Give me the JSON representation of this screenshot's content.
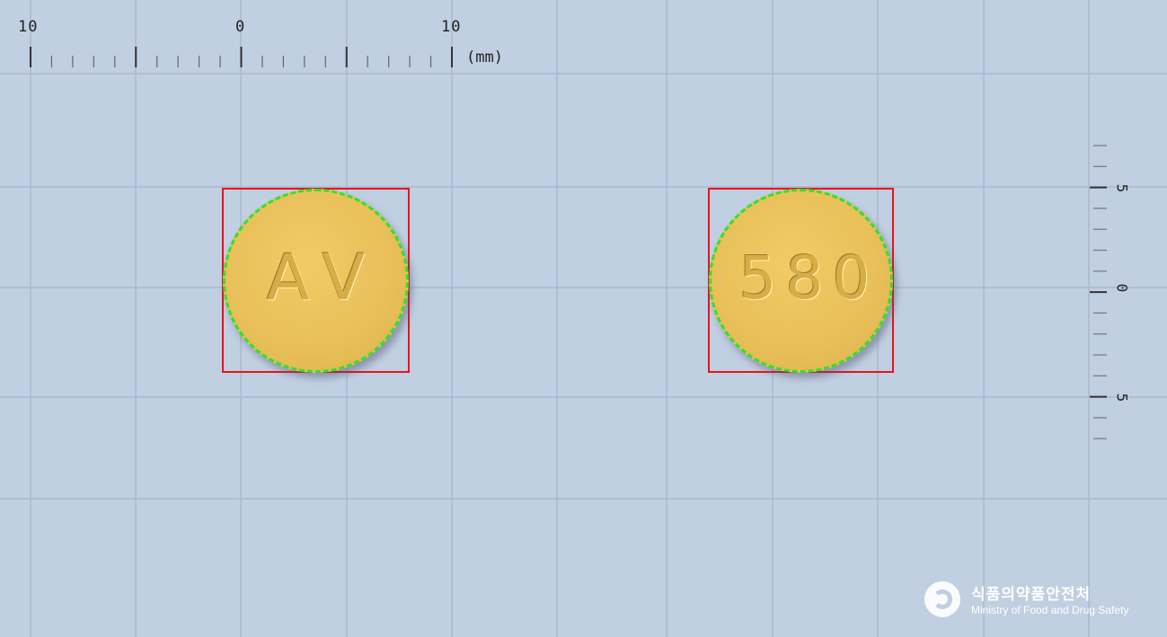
{
  "ruler": {
    "top_labels": [
      "10",
      "0",
      "10"
    ],
    "unit": "(mm)",
    "right_labels": [
      "5",
      "0",
      "5"
    ]
  },
  "tablets": [
    {
      "imprint": "AV",
      "color": "#e9c05a"
    },
    {
      "imprint": "580",
      "color": "#e9c05a"
    }
  ],
  "colors": {
    "background": "#c0cfe1",
    "grid": "#a9b9cd",
    "bbox": "#e8141b",
    "contour": "#2fe22f"
  },
  "logo": {
    "korean": "식품의약품안전처",
    "english": "Ministry of Food and Drug Safety"
  }
}
